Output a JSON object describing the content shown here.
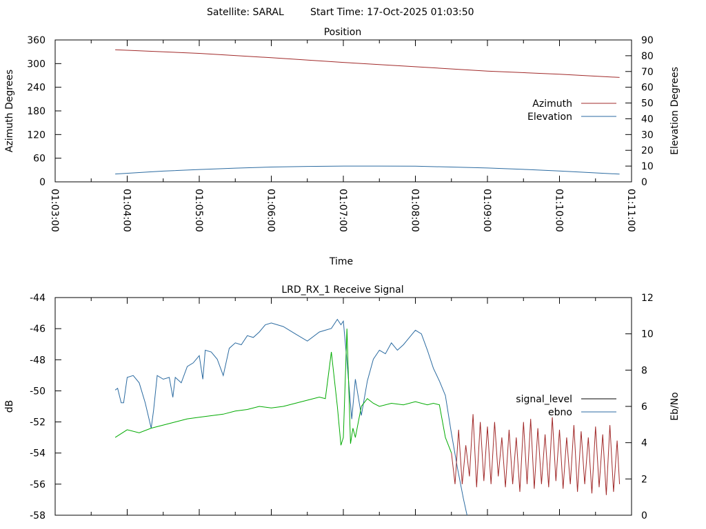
{
  "header": {
    "satellite": "Satellite: SARAL",
    "start_time": "Start Time: 17-Oct-2025 01:03:50"
  },
  "chart_data": [
    {
      "type": "line",
      "title": "Position",
      "xlabel": "Time",
      "ylabel": "Azimuth Degrees",
      "y2label": "Elevation Degrees",
      "xlim": [
        "01:03:00",
        "01:11:00"
      ],
      "ylim": [
        0,
        360
      ],
      "y2lim": [
        0,
        90
      ],
      "x_ticks": [
        "01:03:00",
        "01:04:00",
        "01:05:00",
        "01:06:00",
        "01:07:00",
        "01:08:00",
        "01:09:00",
        "01:10:00",
        "01:11:00"
      ],
      "y_ticks": [
        "0",
        "60",
        "120",
        "180",
        "240",
        "300",
        "360"
      ],
      "y2_ticks": [
        "0",
        "10",
        "20",
        "30",
        "40",
        "50",
        "60",
        "70",
        "80",
        "90"
      ],
      "legend": "right",
      "series": [
        {
          "name": "Azimuth",
          "axis": "y",
          "color": "#a02828",
          "x": [
            "01:03:50",
            "01:05:00",
            "01:06:00",
            "01:07:00",
            "01:08:00",
            "01:09:00",
            "01:10:00",
            "01:10:50"
          ],
          "values": [
            335,
            326,
            315,
            303,
            292,
            281,
            273,
            265
          ]
        },
        {
          "name": "Elevation",
          "axis": "y2",
          "color": "#2a6aa0",
          "x": [
            "01:03:50",
            "01:04:30",
            "01:05:00",
            "01:05:30",
            "01:06:00",
            "01:06:30",
            "01:07:00",
            "01:07:30",
            "01:08:00",
            "01:08:30",
            "01:09:00",
            "01:09:30",
            "01:10:00",
            "01:10:30",
            "01:10:50"
          ],
          "values": [
            5,
            6.8,
            7.8,
            8.7,
            9.4,
            9.8,
            10,
            10,
            9.9,
            9.4,
            8.8,
            7.9,
            6.9,
            5.7,
            4.9
          ]
        }
      ]
    },
    {
      "type": "line",
      "title": "LRD_RX_1 Receive Signal",
      "xlabel": "",
      "ylabel": "dB",
      "y2label": "Eb/No",
      "xlim": [
        "01:03:00",
        "01:11:00"
      ],
      "ylim": [
        -58,
        -44
      ],
      "y2lim": [
        0,
        12
      ],
      "y_ticks": [
        "-44",
        "-46",
        "-48",
        "-50",
        "-52",
        "-54",
        "-56",
        "-58"
      ],
      "y2_ticks": [
        "12",
        "10",
        "8",
        "6",
        "4",
        "2",
        "0"
      ],
      "legend": "right",
      "legend_labels": [
        "signal_level",
        "ebno"
      ],
      "series": [
        {
          "name": "ebno",
          "axis": "y2",
          "color": "#2a6aa0",
          "x": [
            "01:03:50",
            "01:03:52",
            "01:03:55",
            "01:03:57",
            "01:04:00",
            "01:04:05",
            "01:04:10",
            "01:04:15",
            "01:04:20",
            "01:04:22",
            "01:04:25",
            "01:04:30",
            "01:04:35",
            "01:04:38",
            "01:04:40",
            "01:04:45",
            "01:04:50",
            "01:04:55",
            "01:05:00",
            "01:05:03",
            "01:05:05",
            "01:05:10",
            "01:05:15",
            "01:05:20",
            "01:05:25",
            "01:05:30",
            "01:05:35",
            "01:05:40",
            "01:05:45",
            "01:05:50",
            "01:05:55",
            "01:06:00",
            "01:06:10",
            "01:06:20",
            "01:06:30",
            "01:06:40",
            "01:06:45",
            "01:06:50",
            "01:06:55",
            "01:06:58",
            "01:07:00",
            "01:07:03",
            "01:07:07",
            "01:07:10",
            "01:07:15",
            "01:07:20",
            "01:07:25",
            "01:07:30",
            "01:07:35",
            "01:07:40",
            "01:07:45",
            "01:07:50",
            "01:07:55",
            "01:08:00",
            "01:08:05",
            "01:08:10",
            "01:08:15",
            "01:08:20",
            "01:08:25",
            "01:08:30",
            "01:08:35",
            "01:08:40",
            "01:08:43"
          ],
          "values": [
            6.9,
            7.0,
            6.2,
            6.2,
            7.6,
            7.7,
            7.3,
            6.2,
            4.8,
            5.8,
            7.7,
            7.5,
            7.6,
            6.5,
            7.6,
            7.3,
            8.2,
            8.4,
            8.8,
            7.5,
            9.1,
            9.0,
            8.6,
            7.7,
            9.2,
            9.5,
            9.4,
            9.9,
            9.8,
            10.1,
            10.5,
            10.6,
            10.4,
            10.0,
            9.6,
            10.1,
            10.2,
            10.3,
            10.8,
            10.5,
            10.7,
            8.5,
            5.3,
            7.5,
            5.5,
            7.4,
            8.6,
            9.1,
            8.9,
            9.5,
            9.1,
            9.4,
            9.8,
            10.2,
            10.0,
            9.1,
            8.1,
            7.4,
            6.6,
            4.5,
            2.6,
            0.9,
            0.0
          ]
        },
        {
          "name": "signal_level",
          "axis": "y",
          "color": "#00aa00",
          "x": [
            "01:03:50",
            "01:04:00",
            "01:04:10",
            "01:04:20",
            "01:04:30",
            "01:04:40",
            "01:04:50",
            "01:05:00",
            "01:05:10",
            "01:05:20",
            "01:05:30",
            "01:05:40",
            "01:05:50",
            "01:06:00",
            "01:06:10",
            "01:06:20",
            "01:06:30",
            "01:06:40",
            "01:06:45",
            "01:06:50",
            "01:06:55",
            "01:06:58",
            "01:07:00",
            "01:07:03",
            "01:07:06",
            "01:07:08",
            "01:07:10",
            "01:07:15",
            "01:07:20",
            "01:07:25",
            "01:07:30",
            "01:07:40",
            "01:07:50",
            "01:08:00",
            "01:08:10",
            "01:08:15",
            "01:08:20",
            "01:08:25",
            "01:08:30"
          ],
          "values": [
            -53.0,
            -52.5,
            -52.7,
            -52.4,
            -52.2,
            -52.0,
            -51.8,
            -51.7,
            -51.6,
            -51.5,
            -51.3,
            -51.2,
            -51.0,
            -51.1,
            -51.0,
            -50.8,
            -50.6,
            -50.4,
            -50.5,
            -47.5,
            -51.0,
            -53.5,
            -53.0,
            -46.0,
            -53.4,
            -52.4,
            -53.0,
            -51.0,
            -50.5,
            -50.8,
            -51.0,
            -50.8,
            -50.9,
            -50.7,
            -50.9,
            -50.8,
            -50.9,
            -53.0,
            -54.0
          ]
        },
        {
          "name": "signal_level (low)",
          "axis": "y",
          "color": "#a02828",
          "x": [
            "01:08:30",
            "01:08:33",
            "01:08:36",
            "01:08:39",
            "01:08:42",
            "01:08:45",
            "01:08:48",
            "01:08:51",
            "01:08:54",
            "01:08:57",
            "01:09:00",
            "01:09:03",
            "01:09:06",
            "01:09:09",
            "01:09:12",
            "01:09:15",
            "01:09:18",
            "01:09:21",
            "01:09:24",
            "01:09:27",
            "01:09:30",
            "01:09:33",
            "01:09:36",
            "01:09:39",
            "01:09:42",
            "01:09:45",
            "01:09:48",
            "01:09:51",
            "01:09:54",
            "01:09:57",
            "01:10:00",
            "01:10:03",
            "01:10:06",
            "01:10:09",
            "01:10:12",
            "01:10:15",
            "01:10:18",
            "01:10:21",
            "01:10:24",
            "01:10:27",
            "01:10:30",
            "01:10:33",
            "01:10:36",
            "01:10:39",
            "01:10:42",
            "01:10:45",
            "01:10:48",
            "01:10:50"
          ],
          "values": [
            -54.0,
            -56.0,
            -52.5,
            -56.0,
            -53.5,
            -55.5,
            -51.5,
            -56.2,
            -52.0,
            -55.8,
            -52.3,
            -56.0,
            -52.0,
            -55.5,
            -53.0,
            -56.2,
            -52.5,
            -56.0,
            -53.0,
            -56.5,
            -52.0,
            -56.0,
            -51.8,
            -56.3,
            -52.4,
            -56.0,
            -52.8,
            -56.2,
            -51.7,
            -55.8,
            -52.5,
            -56.3,
            -53.0,
            -56.0,
            -52.2,
            -56.5,
            -52.6,
            -56.0,
            -53.0,
            -56.6,
            -52.3,
            -56.2,
            -52.8,
            -56.7,
            -52.2,
            -56.5,
            -53.2,
            -56.0
          ]
        }
      ]
    }
  ]
}
